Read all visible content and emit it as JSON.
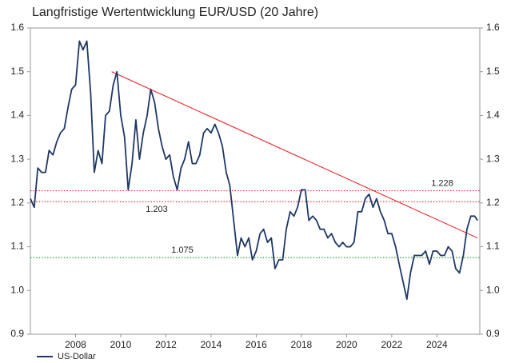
{
  "chart_data": {
    "type": "line",
    "title": "Langfristige Wertentwicklung EUR/USD (20 Jahre)",
    "x": [
      2006,
      2006.17,
      2006.33,
      2006.5,
      2006.67,
      2006.83,
      2007,
      2007.17,
      2007.33,
      2007.5,
      2007.67,
      2007.83,
      2008,
      2008.17,
      2008.33,
      2008.5,
      2008.67,
      2008.83,
      2009,
      2009.17,
      2009.33,
      2009.5,
      2009.67,
      2009.83,
      2010,
      2010.17,
      2010.33,
      2010.5,
      2010.67,
      2010.83,
      2011,
      2011.17,
      2011.33,
      2011.5,
      2011.67,
      2011.83,
      2012,
      2012.17,
      2012.33,
      2012.5,
      2012.67,
      2012.83,
      2013,
      2013.17,
      2013.33,
      2013.5,
      2013.67,
      2013.83,
      2014,
      2014.17,
      2014.33,
      2014.5,
      2014.67,
      2014.83,
      2015,
      2015.17,
      2015.33,
      2015.5,
      2015.67,
      2015.83,
      2016,
      2016.17,
      2016.33,
      2016.5,
      2016.67,
      2016.83,
      2017,
      2017.17,
      2017.33,
      2017.5,
      2017.67,
      2017.83,
      2018,
      2018.17,
      2018.33,
      2018.5,
      2018.67,
      2018.83,
      2019,
      2019.17,
      2019.33,
      2019.5,
      2019.67,
      2019.83,
      2020,
      2020.17,
      2020.33,
      2020.5,
      2020.67,
      2020.83,
      2021,
      2021.17,
      2021.33,
      2021.5,
      2021.67,
      2021.83,
      2022,
      2022.17,
      2022.33,
      2022.5,
      2022.67,
      2022.83,
      2023,
      2023.17,
      2023.33,
      2023.5,
      2023.67,
      2023.83,
      2024,
      2024.17,
      2024.33,
      2024.5,
      2024.67,
      2024.83,
      2025,
      2025.17,
      2025.33,
      2025.5,
      2025.67,
      2025.8
    ],
    "series": [
      {
        "name": "US-Dollar",
        "color": "#1f3864",
        "values": [
          1.21,
          1.19,
          1.28,
          1.27,
          1.27,
          1.32,
          1.31,
          1.34,
          1.36,
          1.37,
          1.42,
          1.46,
          1.47,
          1.57,
          1.55,
          1.57,
          1.45,
          1.27,
          1.32,
          1.29,
          1.4,
          1.41,
          1.47,
          1.5,
          1.4,
          1.35,
          1.23,
          1.29,
          1.39,
          1.3,
          1.36,
          1.4,
          1.46,
          1.43,
          1.37,
          1.33,
          1.3,
          1.31,
          1.26,
          1.23,
          1.28,
          1.3,
          1.34,
          1.29,
          1.29,
          1.31,
          1.36,
          1.37,
          1.36,
          1.38,
          1.36,
          1.33,
          1.27,
          1.24,
          1.16,
          1.08,
          1.12,
          1.1,
          1.12,
          1.07,
          1.09,
          1.13,
          1.14,
          1.11,
          1.12,
          1.05,
          1.07,
          1.07,
          1.14,
          1.18,
          1.17,
          1.19,
          1.23,
          1.23,
          1.16,
          1.17,
          1.16,
          1.14,
          1.14,
          1.12,
          1.13,
          1.11,
          1.1,
          1.11,
          1.1,
          1.1,
          1.11,
          1.18,
          1.18,
          1.21,
          1.22,
          1.19,
          1.21,
          1.18,
          1.16,
          1.13,
          1.13,
          1.1,
          1.06,
          1.02,
          0.98,
          1.04,
          1.08,
          1.08,
          1.08,
          1.09,
          1.06,
          1.09,
          1.09,
          1.08,
          1.08,
          1.1,
          1.09,
          1.05,
          1.04,
          1.08,
          1.14,
          1.17,
          1.17,
          1.16
        ]
      }
    ],
    "reference_lines": [
      {
        "value": 1.228,
        "label": "1.228",
        "color": "#e8383d"
      },
      {
        "value": 1.203,
        "label": "1.203",
        "color": "#e8383d"
      },
      {
        "value": 1.075,
        "label": "1.075",
        "color": "#3a9a3a"
      }
    ],
    "trend_line": {
      "x": [
        2009.6,
        2025.8
      ],
      "y": [
        1.5,
        1.12
      ],
      "color": "#e8383d"
    },
    "xlim": [
      2006,
      2025.9
    ],
    "xticks": [
      2008,
      2010,
      2012,
      2014,
      2016,
      2018,
      2020,
      2022,
      2024
    ],
    "ylim": [
      0.9,
      1.6
    ],
    "yticks": [
      0.9,
      {
        "value": 1,
        "label": "1.0"
      },
      1.1,
      1.2,
      1.3,
      1.4,
      1.5,
      1.6
    ],
    "legend": "bottom-left"
  }
}
